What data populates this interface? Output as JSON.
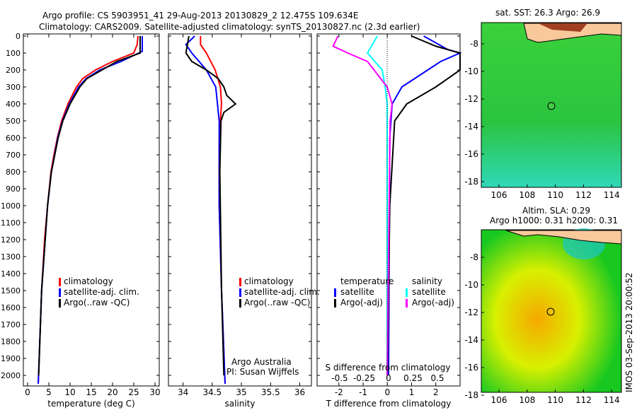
{
  "title_line1": "Argo profile: CS 5903951_41 29-Aug-2013 20130829_2 12.475S 109.634E",
  "title_line2": "Climatology: CARS2009. Satellite-adjusted climatology: synTS_20130827.nc (2.3d earlier)",
  "colors": {
    "climatology": "#ff0000",
    "satellite": "#0000ff",
    "argo": "#000000",
    "s_satellite": "#00ffff",
    "s_argo": "#ff00ff",
    "land": "#f9c89b"
  },
  "chart_data": [
    {
      "type": "line",
      "name": "temperature",
      "xlabel": "temperature (deg C)",
      "xlim": [
        -1,
        31
      ],
      "ylim": [
        2050,
        0
      ],
      "xticks": [
        "0",
        "5",
        "10",
        "15",
        "20",
        "25",
        "30"
      ],
      "xtick_values": [
        0,
        5,
        10,
        15,
        20,
        25,
        30
      ],
      "yticks": [
        "0",
        "100",
        "200",
        "300",
        "400",
        "500",
        "600",
        "700",
        "800",
        "900",
        "1000",
        "1100",
        "1200",
        "1300",
        "1400",
        "1500",
        "1600",
        "1700",
        "1800",
        "1900",
        "2000"
      ],
      "legend": [
        "climatology",
        "satellite-adj. clim.",
        "Argo(..raw -QC)"
      ],
      "series": [
        {
          "name": "climatology",
          "depth": [
            0,
            50,
            100,
            150,
            200,
            250,
            300,
            400,
            500,
            600,
            700,
            800,
            1000,
            1200,
            1500,
            2000,
            2050
          ],
          "values": [
            26,
            25.8,
            25,
            20,
            16,
            13,
            11.5,
            9.5,
            8,
            7,
            6.2,
            5.5,
            4.7,
            4,
            3.3,
            2.6,
            2.5
          ]
        },
        {
          "name": "satellite-adj. clim.",
          "depth": [
            0,
            90,
            150,
            200,
            250,
            300,
            400,
            500,
            600,
            800,
            1000,
            1500,
            2050
          ],
          "values": [
            27,
            27,
            22,
            17,
            13.8,
            12,
            9.8,
            8.2,
            7.1,
            5.6,
            4.7,
            3.3,
            2.5
          ]
        },
        {
          "name": "Argo(..raw -QC)",
          "depth": [
            0,
            100,
            150,
            200,
            250,
            300,
            400,
            500,
            600,
            800,
            1000,
            1500,
            2000
          ],
          "values": [
            26.5,
            26.5,
            21,
            17.5,
            14,
            12.3,
            10,
            8.3,
            7.2,
            5.6,
            4.7,
            3.3,
            2.6
          ]
        }
      ]
    },
    {
      "type": "line",
      "name": "salinity",
      "xlabel": "salinity",
      "xlim": [
        33.75,
        36.2
      ],
      "ylim": [
        2050,
        0
      ],
      "xticks": [
        "34",
        "34.5",
        "35",
        "35.5",
        "36"
      ],
      "xtick_values": [
        34,
        34.5,
        35,
        35.5,
        36
      ],
      "legend": [
        "climatology",
        "satellite-adj. clim.",
        "Argo(..raw -QC)"
      ],
      "annotation": [
        "Argo Australia",
        "PI: Susan Wijffels"
      ],
      "series": [
        {
          "name": "climatology",
          "depth": [
            0,
            50,
            100,
            200,
            300,
            400,
            600,
            1000,
            1500,
            2050
          ],
          "values": [
            34.3,
            34.3,
            34.4,
            34.55,
            34.64,
            34.66,
            34.62,
            34.62,
            34.66,
            34.72
          ]
        },
        {
          "name": "satellite-adj. clim.",
          "depth": [
            0,
            50,
            100,
            200,
            300,
            500,
            1000,
            1500,
            2050
          ],
          "values": [
            34.2,
            34.05,
            34.15,
            34.4,
            34.56,
            34.62,
            34.62,
            34.66,
            34.72
          ]
        },
        {
          "name": "Argo(..raw -QC)",
          "depth": [
            0,
            100,
            150,
            200,
            250,
            300,
            350,
            400,
            450,
            500,
            800,
            1500,
            2000
          ],
          "values": [
            34.1,
            34.05,
            34.15,
            34.4,
            34.6,
            34.7,
            34.75,
            34.9,
            34.7,
            34.65,
            34.63,
            34.66,
            34.7
          ]
        }
      ]
    },
    {
      "type": "line",
      "name": "differences",
      "xlabel": "T difference from climatology",
      "x2label": "S difference from climatology",
      "xlim": [
        -2.9,
        3
      ],
      "ylim": [
        2050,
        0
      ],
      "xticks": [
        "-2",
        "-1",
        "0",
        "1",
        "2"
      ],
      "xtick_values": [
        -2,
        -1,
        0,
        1,
        2
      ],
      "x2ticks": [
        "-0.5",
        "-0.25",
        "0",
        "0.25",
        "0.5"
      ],
      "legend_temperature": [
        "temperature",
        "satellite",
        "Argo(-adj)"
      ],
      "legend_salinity": [
        "salinity",
        "satellite",
        "Argo(-adj)"
      ],
      "series": [
        {
          "name": "T satellite",
          "depth": [
            0,
            80,
            100,
            150,
            300,
            400,
            600,
            2000
          ],
          "values": [
            1.5,
            2.5,
            3,
            2.2,
            0.6,
            0.2,
            0.1,
            0.05
          ]
        },
        {
          "name": "T Argo(-adj)",
          "depth": [
            0,
            60,
            100,
            200,
            300,
            400,
            500,
            1000,
            2000
          ],
          "values": [
            1,
            2,
            3,
            3,
            2,
            0.8,
            0.3,
            0.1,
            0
          ]
        },
        {
          "name": "S satellite",
          "depth": [
            0,
            50,
            100,
            200,
            300,
            400,
            2000
          ],
          "values": [
            -0.1,
            -0.15,
            -0.2,
            -0.05,
            -0.02,
            0,
            0
          ]
        },
        {
          "name": "S Argo(-adj)",
          "depth": [
            0,
            60,
            100,
            150,
            300,
            400,
            500,
            2000
          ],
          "values": [
            -0.5,
            -0.55,
            -0.4,
            -0.2,
            0,
            0.05,
            0.03,
            0
          ]
        }
      ]
    },
    {
      "type": "heatmap",
      "name": "sst-map",
      "title": "sat. SST: 26.3 Argo: 26.9",
      "xticks": [
        "106",
        "108",
        "110",
        "112",
        "114"
      ],
      "yticks": [
        "-8",
        "-10",
        "-12",
        "-14",
        "-16",
        "-18"
      ],
      "argo_position": [
        109.634,
        -12.475
      ]
    },
    {
      "type": "heatmap",
      "name": "sla-map",
      "title": "Altim. SLA: 0.29",
      "subtitle": "Argo h1000: 0.31 h2000: 0.31",
      "xticks": [
        "106",
        "108",
        "110",
        "112",
        "114"
      ],
      "yticks": [
        "-8",
        "-10",
        "-12",
        "-14",
        "-16",
        "-18"
      ],
      "argo_position": [
        109.634,
        -12.475
      ]
    }
  ],
  "side_label": "IMOS 03-Sep-2013 20:00:52"
}
